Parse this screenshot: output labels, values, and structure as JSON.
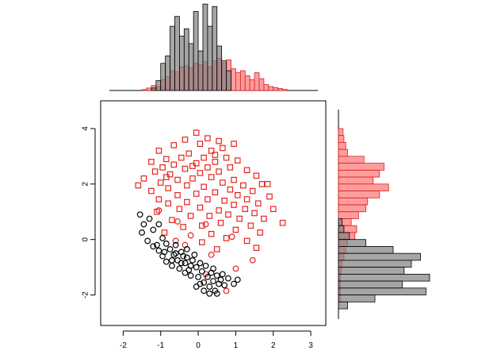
{
  "colors": {
    "series_a_stroke": "#e8231d",
    "series_a_fill": "#ff8c8c",
    "series_b_stroke": "#000000",
    "series_b_fill": "#808080",
    "axis": "#000000"
  },
  "chart_data": [
    {
      "type": "scatter",
      "xlim": [
        -2.6,
        3.4
      ],
      "ylim": [
        -3.1,
        5.0
      ],
      "x_ticks": [
        -2,
        -1,
        0,
        1,
        2,
        3
      ],
      "y_ticks": [
        -2,
        0,
        2,
        4
      ],
      "x_tick_labels": [
        "-2",
        "-1",
        "0",
        "1",
        "2",
        "3"
      ],
      "y_tick_labels": [
        "-2",
        "0",
        "2",
        "4"
      ],
      "grid": false,
      "series": [
        {
          "marker": "square",
          "color": "#e8231d",
          "points": [
            [
              -0.05,
              3.85
            ],
            [
              0.25,
              3.65
            ],
            [
              -0.35,
              3.6
            ],
            [
              0.55,
              3.55
            ],
            [
              0.05,
              3.45
            ],
            [
              -0.65,
              3.4
            ],
            [
              0.95,
              3.45
            ],
            [
              0.65,
              3.3
            ],
            [
              -1.05,
              3.2
            ],
            [
              0.35,
              3.2
            ],
            [
              -0.25,
              3.1
            ],
            [
              0.15,
              2.95
            ],
            [
              0.75,
              2.95
            ],
            [
              1.05,
              2.85
            ],
            [
              -0.85,
              2.9
            ],
            [
              -0.45,
              2.95
            ],
            [
              -1.25,
              2.8
            ],
            [
              0.45,
              2.8
            ],
            [
              -0.65,
              2.7
            ],
            [
              -0.05,
              2.75
            ],
            [
              0.85,
              2.6
            ],
            [
              -0.95,
              2.6
            ],
            [
              0.25,
              2.6
            ],
            [
              1.3,
              2.5
            ],
            [
              -0.35,
              2.55
            ],
            [
              0.55,
              2.45
            ],
            [
              -1.15,
              2.45
            ],
            [
              -0.75,
              2.35
            ],
            [
              0.05,
              2.4
            ],
            [
              1.55,
              2.3
            ],
            [
              -1.45,
              2.2
            ],
            [
              0.35,
              2.25
            ],
            [
              -0.15,
              2.2
            ],
            [
              0.95,
              2.15
            ],
            [
              -0.55,
              2.15
            ],
            [
              1.7,
              2.0
            ],
            [
              -1.0,
              2.05
            ],
            [
              0.65,
              2.05
            ],
            [
              1.2,
              1.95
            ],
            [
              -1.6,
              1.95
            ],
            [
              -0.3,
              1.95
            ],
            [
              0.15,
              1.9
            ],
            [
              1.85,
              2.0
            ],
            [
              -0.8,
              1.85
            ],
            [
              0.85,
              1.8
            ],
            [
              1.45,
              1.75
            ],
            [
              -1.25,
              1.75
            ],
            [
              0.45,
              1.7
            ],
            [
              -0.05,
              1.65
            ],
            [
              1.05,
              1.6
            ],
            [
              -0.55,
              1.6
            ],
            [
              1.9,
              1.55
            ],
            [
              1.3,
              1.45
            ],
            [
              -1.05,
              1.45
            ],
            [
              0.25,
              1.45
            ],
            [
              0.7,
              1.4
            ],
            [
              -0.3,
              1.35
            ],
            [
              1.6,
              1.3
            ],
            [
              -0.8,
              1.3
            ],
            [
              0.95,
              1.25
            ],
            [
              2.0,
              1.1
            ],
            [
              1.25,
              1.1
            ],
            [
              0.05,
              1.15
            ],
            [
              -0.5,
              1.1
            ],
            [
              0.55,
              1.05
            ],
            [
              1.5,
              0.95
            ],
            [
              -1.1,
              1.0
            ],
            [
              0.8,
              0.9
            ],
            [
              0.3,
              0.85
            ],
            [
              -0.2,
              0.85
            ],
            [
              1.75,
              0.75
            ],
            [
              1.1,
              0.75
            ],
            [
              -0.7,
              0.7
            ],
            [
              2.25,
              0.6
            ],
            [
              0.6,
              0.6
            ],
            [
              1.4,
              0.5
            ],
            [
              0.1,
              0.5
            ],
            [
              -0.4,
              0.45
            ],
            [
              1.0,
              0.35
            ],
            [
              1.65,
              0.25
            ],
            [
              0.35,
              0.2
            ],
            [
              -0.9,
              0.25
            ],
            [
              0.75,
              0.05
            ],
            [
              1.3,
              -0.05
            ],
            [
              0.1,
              -0.1
            ],
            [
              1.55,
              -0.3
            ],
            [
              0.5,
              -0.35
            ],
            [
              -0.15,
              2.65
            ],
            [
              0.45,
              3.05
            ],
            [
              -0.85,
              2.25
            ]
          ]
        },
        {
          "marker": "circle",
          "color": "#e8231d",
          "points": [
            [
              -1.05,
              1.05
            ],
            [
              -0.55,
              0.65
            ],
            [
              0.2,
              0.55
            ],
            [
              -0.2,
              0.15
            ],
            [
              0.9,
              0.1
            ],
            [
              -0.6,
              -0.05
            ],
            [
              1.45,
              -0.75
            ],
            [
              0.35,
              -0.55
            ],
            [
              0.75,
              -1.85
            ],
            [
              1.0,
              -1.05
            ],
            [
              0.2,
              -1.25
            ],
            [
              -0.35,
              -0.2
            ]
          ]
        },
        {
          "marker": "circle",
          "color": "#000000",
          "points": [
            [
              -1.55,
              0.9
            ],
            [
              -1.45,
              0.55
            ],
            [
              -1.3,
              0.75
            ],
            [
              -1.2,
              0.35
            ],
            [
              -1.5,
              0.25
            ],
            [
              -1.05,
              0.55
            ],
            [
              -1.35,
              -0.05
            ],
            [
              -1.2,
              -0.25
            ],
            [
              -0.95,
              0.05
            ],
            [
              -1.05,
              -0.4
            ],
            [
              -0.85,
              -0.15
            ],
            [
              -0.95,
              -0.6
            ],
            [
              -0.75,
              -0.35
            ],
            [
              -0.85,
              -0.8
            ],
            [
              -0.65,
              -0.55
            ],
            [
              -0.7,
              -0.95
            ],
            [
              -0.55,
              -0.75
            ],
            [
              -0.6,
              -0.2
            ],
            [
              -0.45,
              -0.45
            ],
            [
              -0.5,
              -1.05
            ],
            [
              -0.35,
              -0.85
            ],
            [
              -0.4,
              -0.6
            ],
            [
              -0.25,
              -1.1
            ],
            [
              -0.3,
              -0.35
            ],
            [
              -0.15,
              -0.75
            ],
            [
              -0.2,
              -1.3
            ],
            [
              -0.05,
              -1.0
            ],
            [
              -0.1,
              -0.55
            ],
            [
              0.0,
              -1.35
            ],
            [
              0.05,
              -0.85
            ],
            [
              0.1,
              -1.15
            ],
            [
              0.15,
              -1.55
            ],
            [
              0.2,
              -0.95
            ],
            [
              0.25,
              -1.35
            ],
            [
              0.3,
              -1.7
            ],
            [
              0.35,
              -1.2
            ],
            [
              0.4,
              -1.5
            ],
            [
              0.45,
              -1.85
            ],
            [
              0.5,
              -1.3
            ],
            [
              0.55,
              -1.6
            ],
            [
              0.6,
              -1.45
            ],
            [
              0.7,
              -1.65
            ],
            [
              0.8,
              -1.4
            ],
            [
              0.95,
              -1.6
            ],
            [
              1.05,
              -1.45
            ],
            [
              0.65,
              -1.25
            ],
            [
              0.4,
              -1.05
            ],
            [
              0.05,
              -1.6
            ],
            [
              -0.2,
              -0.95
            ],
            [
              -0.45,
              -0.85
            ],
            [
              -0.7,
              -0.75
            ],
            [
              -0.9,
              -0.45
            ],
            [
              -1.1,
              -0.2
            ],
            [
              -0.6,
              -0.5
            ],
            [
              -0.3,
              -0.65
            ],
            [
              0.15,
              -1.85
            ],
            [
              0.3,
              -1.95
            ],
            [
              -0.05,
              -1.7
            ],
            [
              0.5,
              -1.95
            ],
            [
              -0.35,
              -1.2
            ]
          ]
        }
      ]
    },
    {
      "type": "bar",
      "orientation": "vertical",
      "bin_width": 0.125,
      "series": [
        {
          "color": "#ff8c8c",
          "bins": [
            [
              -1.5,
              2
            ],
            [
              -1.375,
              5
            ],
            [
              -1.25,
              10
            ],
            [
              -1.125,
              8
            ],
            [
              -1.0,
              22
            ],
            [
              -0.875,
              28
            ],
            [
              -0.75,
              40
            ],
            [
              -0.625,
              38
            ],
            [
              -0.5,
              48
            ],
            [
              -0.375,
              50
            ],
            [
              -0.25,
              46
            ],
            [
              -0.125,
              55
            ],
            [
              0.0,
              52
            ],
            [
              0.125,
              58
            ],
            [
              0.25,
              48
            ],
            [
              0.375,
              60
            ],
            [
              0.5,
              65
            ],
            [
              0.625,
              55
            ],
            [
              0.75,
              62
            ],
            [
              0.875,
              44
            ],
            [
              1.0,
              36
            ],
            [
              1.125,
              40
            ],
            [
              1.25,
              30
            ],
            [
              1.375,
              22
            ],
            [
              1.5,
              36
            ],
            [
              1.625,
              24
            ],
            [
              1.75,
              12
            ],
            [
              1.875,
              8
            ],
            [
              2.0,
              6
            ],
            [
              2.125,
              4
            ],
            [
              2.25,
              2
            ]
          ]
        },
        {
          "color": "#808080",
          "bins": [
            [
              -1.25,
              5
            ],
            [
              -1.125,
              20
            ],
            [
              -1.0,
              55
            ],
            [
              -0.875,
              70
            ],
            [
              -0.75,
              130
            ],
            [
              -0.625,
              150
            ],
            [
              -0.5,
              110
            ],
            [
              -0.375,
              125
            ],
            [
              -0.25,
              95
            ],
            [
              -0.125,
              160
            ],
            [
              0.0,
              80
            ],
            [
              0.125,
              175
            ],
            [
              0.25,
              130
            ],
            [
              0.375,
              170
            ],
            [
              0.5,
              90
            ],
            [
              0.625,
              60
            ],
            [
              0.75,
              40
            ]
          ]
        }
      ]
    },
    {
      "type": "bar",
      "orientation": "horizontal",
      "bin_width": 0.25,
      "series": [
        {
          "color": "#ff8c8c",
          "bins": [
            [
              3.75,
              5
            ],
            [
              3.5,
              6
            ],
            [
              3.25,
              8
            ],
            [
              3.0,
              10
            ],
            [
              2.75,
              28
            ],
            [
              2.5,
              50
            ],
            [
              2.25,
              45
            ],
            [
              2.0,
              38
            ],
            [
              1.75,
              55
            ],
            [
              1.5,
              45
            ],
            [
              1.25,
              32
            ],
            [
              1.0,
              30
            ],
            [
              0.75,
              22
            ],
            [
              0.5,
              14
            ],
            [
              0.25,
              20
            ],
            [
              0.0,
              18
            ],
            [
              -0.25,
              10
            ],
            [
              -0.5,
              8
            ],
            [
              -0.75,
              6
            ],
            [
              -1.0,
              4
            ],
            [
              -1.25,
              3
            ],
            [
              -1.5,
              2
            ],
            [
              -1.75,
              2
            ],
            [
              -2.0,
              2
            ],
            [
              -2.25,
              2
            ]
          ]
        },
        {
          "color": "#808080",
          "bins": [
            [
              0.5,
              4
            ],
            [
              0.25,
              6
            ],
            [
              0.0,
              12
            ],
            [
              -0.25,
              30
            ],
            [
              -0.5,
              60
            ],
            [
              -0.75,
              90
            ],
            [
              -1.0,
              80
            ],
            [
              -1.25,
              72
            ],
            [
              -1.5,
              100
            ],
            [
              -1.75,
              70
            ],
            [
              -2.0,
              96
            ],
            [
              -2.25,
              40
            ],
            [
              -2.5,
              10
            ]
          ]
        }
      ]
    }
  ]
}
